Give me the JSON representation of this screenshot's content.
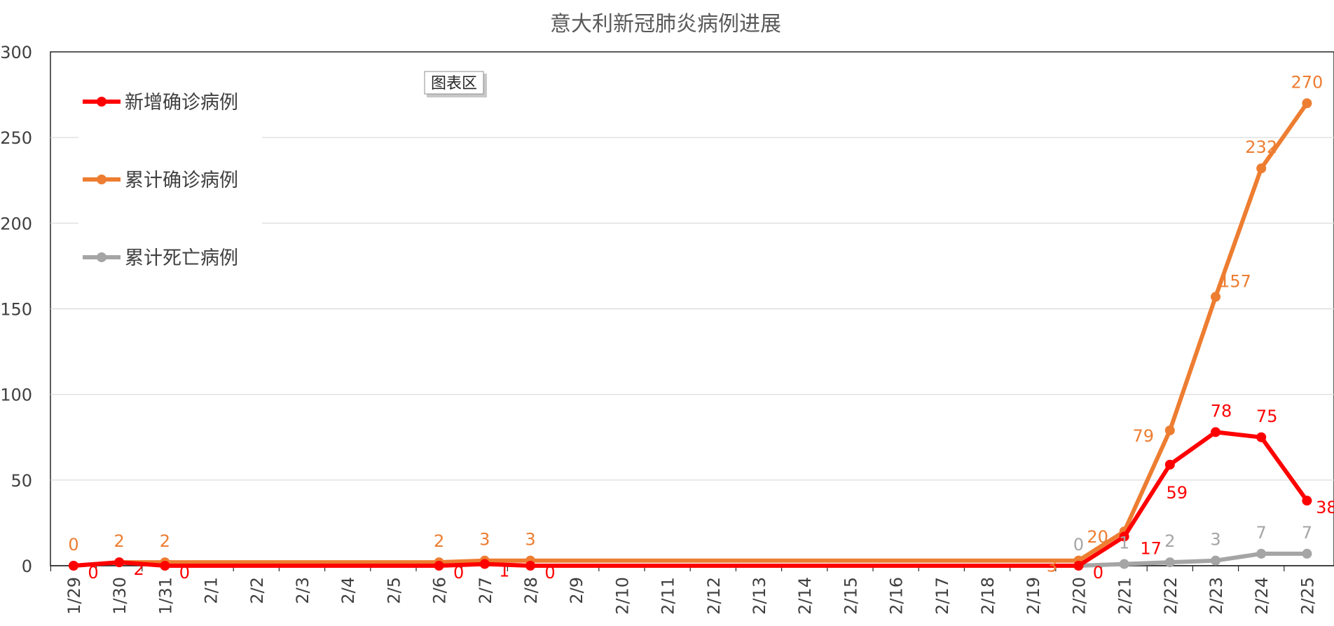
{
  "chart_data": {
    "type": "line",
    "title": "意大利新冠肺炎病例进展",
    "chart_area_tag": "图表区",
    "xlabel": "",
    "ylabel": "",
    "ylim": [
      0,
      300
    ],
    "yticks": [
      0,
      50,
      100,
      150,
      200,
      250,
      300
    ],
    "grid": true,
    "legend_position": "top-left",
    "categories": [
      "1/29",
      "1/30",
      "1/31",
      "2/1",
      "2/2",
      "2/3",
      "2/4",
      "2/5",
      "2/6",
      "2/7",
      "2/8",
      "2/9",
      "2/10",
      "2/11",
      "2/12",
      "2/13",
      "2/14",
      "2/15",
      "2/16",
      "2/17",
      "2/18",
      "2/19",
      "2/20",
      "2/21",
      "2/22",
      "2/23",
      "2/24",
      "2/25"
    ],
    "series": [
      {
        "name": "新增确诊病例",
        "color": "#ff0000",
        "values": [
          0,
          2,
          0,
          null,
          null,
          null,
          null,
          null,
          0,
          1,
          0,
          null,
          null,
          null,
          null,
          null,
          null,
          null,
          null,
          null,
          null,
          null,
          0,
          17,
          59,
          78,
          75,
          38
        ]
      },
      {
        "name": "累计确诊病例",
        "color": "#ed7d31",
        "values": [
          0,
          2,
          2,
          null,
          null,
          null,
          null,
          null,
          2,
          3,
          3,
          null,
          null,
          null,
          null,
          null,
          null,
          null,
          null,
          null,
          null,
          null,
          3,
          20,
          79,
          157,
          232,
          270
        ]
      },
      {
        "name": "累计死亡病例",
        "color": "#a5a5a5",
        "values": [
          null,
          null,
          null,
          null,
          null,
          null,
          null,
          null,
          null,
          null,
          null,
          null,
          null,
          null,
          null,
          null,
          null,
          null,
          null,
          null,
          null,
          null,
          0,
          1,
          2,
          3,
          7,
          7
        ]
      }
    ]
  }
}
